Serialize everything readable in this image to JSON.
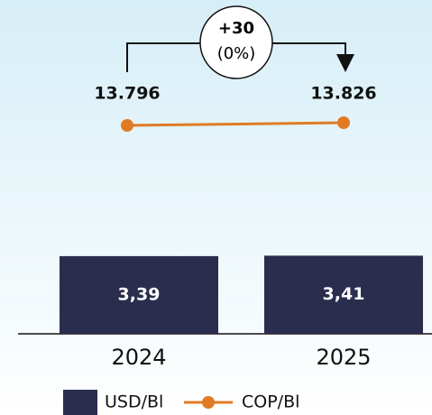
{
  "chart_data": {
    "type": "bar",
    "categories": [
      "2024",
      "2025"
    ],
    "series": [
      {
        "name": "USD/Bl",
        "type": "bar",
        "color": "#2b2d4e",
        "values": [
          3.39,
          3.41
        ],
        "value_labels": [
          "3,39",
          "3,41"
        ]
      },
      {
        "name": "COP/Bl",
        "type": "line",
        "color": "#e07b24",
        "values": [
          13796,
          13826
        ],
        "value_labels": [
          "13.796",
          "13.826"
        ]
      }
    ],
    "annotations": {
      "difference": "+30",
      "percent": "(0%)"
    }
  }
}
